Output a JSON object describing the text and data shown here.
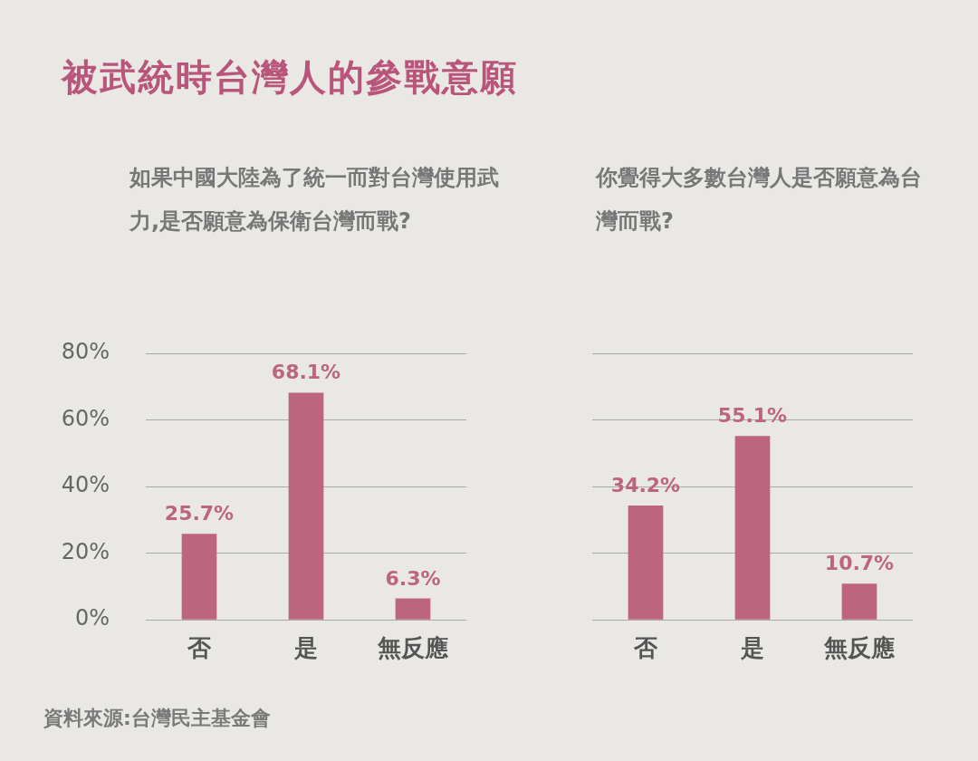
{
  "chart_data": [
    {
      "type": "bar",
      "title": "被武統時台灣人的參戰意願",
      "subtitle": "如果中國大陸為了統一而對台灣使用武力,是否願意為保衛台灣而戰?",
      "annotations": [
        "資料來源:台灣民主基金會"
      ],
      "categories": [
        "否",
        "是",
        "無反應"
      ],
      "values": [
        25.7,
        68.1,
        6.3
      ],
      "value_labels": [
        "25.7%",
        "68.1%",
        "6.3%"
      ],
      "color": "#bc6480",
      "ylim": [
        0,
        80
      ],
      "yticks": [
        {
          "value": 0,
          "label": "0%"
        },
        {
          "value": 20,
          "label": "20%"
        },
        {
          "value": 40,
          "label": "40%"
        },
        {
          "value": 60,
          "label": "60%"
        },
        {
          "value": 80,
          "label": "80%"
        }
      ],
      "grid": "y"
    },
    {
      "type": "bar",
      "subtitle": "你覺得大多數台灣人是否願意為台灣而戰?",
      "categories": [
        "否",
        "是",
        "無反應"
      ],
      "values": [
        34.2,
        55.1,
        10.7
      ],
      "value_labels": [
        "34.2%",
        "55.1%",
        "10.7%"
      ],
      "color": "#bc6480",
      "ylim": [
        0,
        80
      ],
      "yticks": [
        0,
        20,
        40,
        60,
        80
      ],
      "grid": "y",
      "tick_labels": "x"
    }
  ]
}
